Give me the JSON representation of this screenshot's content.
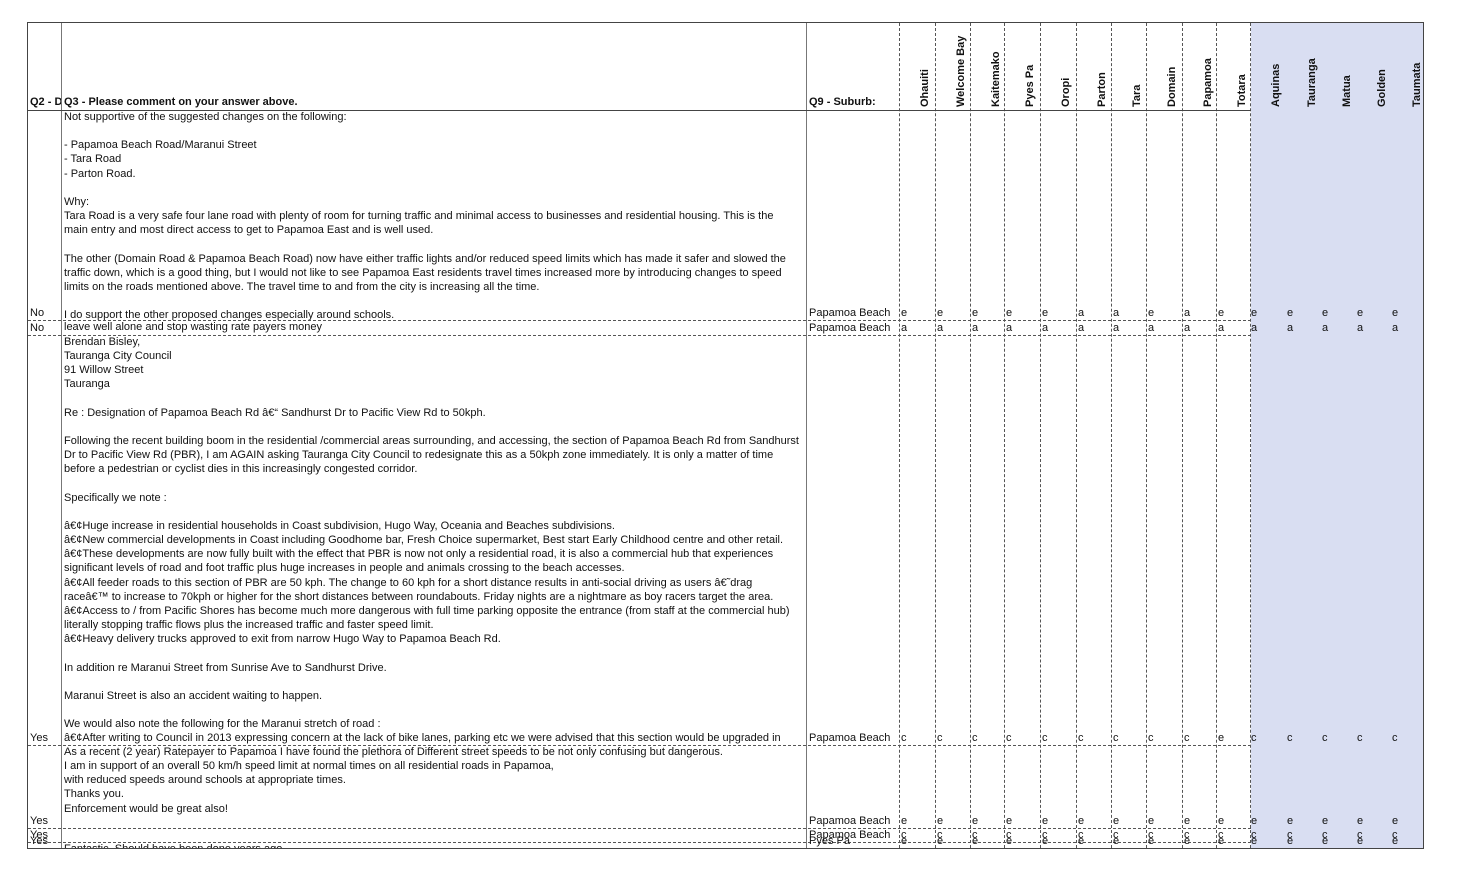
{
  "headers": {
    "q2": "Q2 - D",
    "q3": "Q3 - Please comment on your answer above.",
    "q9": "Q9 - Suburb:",
    "areas": [
      "Ohauiti",
      "Welcome Bay",
      "Kaitemako",
      "Pyes Pa",
      "Oropi",
      "Parton",
      "Tara",
      "Domain",
      "Papamoa",
      "Totara",
      "Aquinas",
      "Tauranga",
      "Matua",
      "Golden",
      "Taumata"
    ]
  },
  "shaded_color": "#d9def2",
  "rows": [
    {
      "q2": "No",
      "q3": [
        "Not supportive of the suggested changes on the following:",
        "",
        "- Papamoa Beach Road/Maranui Street",
        "- Tara Road",
        "- Parton Road.",
        "",
        "Why:",
        "Tara Road is a very safe four lane road with plenty of room for turning traffic and minimal access to businesses and residential housing. This is the",
        "main entry and most direct access to get to Papamoa East and is well used.",
        "",
        "The other (Domain Road & Papamoa Beach Road) now have either traffic lights and/or reduced speed limits which has made it safer and slowed the",
        "traffic down, which is a good thing, but I would not like to see Papamoa East residents travel times increased more by introducing changes to speed",
        "limits on the roads mentioned above. The travel time to and from the city is increasing all the time.",
        "",
        "I do support the other proposed changes especially around schools."
      ],
      "q9": "Papamoa Beach",
      "codes": [
        "e",
        "e",
        "e",
        "e",
        "e",
        "a",
        "a",
        "e",
        "a",
        "e",
        "e",
        "e",
        "e",
        "e",
        "e"
      ]
    },
    {
      "q2": "No",
      "q3": [
        "leave well alone and stop wasting rate payers money"
      ],
      "q9": "Papamoa Beach",
      "codes": [
        "a",
        "a",
        "a",
        "a",
        "a",
        "a",
        "a",
        "a",
        "a",
        "a",
        "a",
        "a",
        "a",
        "a",
        "a"
      ]
    },
    {
      "q2": "Yes",
      "q3": [
        "Brendan Bisley,",
        "Tauranga City Council",
        "91 Willow Street",
        "Tauranga",
        "",
        "Re : Designation of Papamoa Beach Rd â€“ Sandhurst Dr to Pacific View Rd to 50kph.",
        "",
        "Following  the recent building boom in the residential /commercial areas surrounding, and accessing, the section of Papamoa Beach Rd from Sandhurst",
        "Dr to Pacific View Rd (PBR), I am AGAIN asking Tauranga City Council to redesignate this as a 50kph zone immediately. It is only a matter of time",
        "before a pedestrian or cyclist dies in this increasingly congested corridor.",
        "",
        "Specifically we note :",
        "",
        "â€¢Huge increase in residential households in Coast subdivision, Hugo Way, Oceania and Beaches subdivisions.",
        "â€¢New commercial developments in Coast including Goodhome bar, Fresh Choice supermarket, Best start Early Childhood centre and other retail.",
        "â€¢These developments are now fully built with the effect that PBR is now not only a residential road, it is also a commercial hub that experiences",
        "significant levels of road and foot traffic plus huge increases in people and animals crossing to the beach accesses.",
        "â€¢All feeder roads to this section of PBR are 50 kph. The change to 60 kph for a short distance results in anti-social driving as users â€˜drag",
        "raceâ€™ to increase to 70kph or higher for the short distances between roundabouts. Friday nights are a nightmare as boy racers target the area.",
        "â€¢Access to / from Pacific Shores has become much more dangerous with full time parking opposite the entrance (from staff at the commercial hub)",
        "literally stopping traffic flows plus the increased traffic and faster speed limit.",
        "â€¢Heavy delivery trucks approved to exit  from narrow Hugo Way to Papamoa Beach Rd.",
        "",
        "In addition re Maranui Street from Sunrise Ave to Sandhurst Drive.",
        "",
        "Maranui Street is also an accident waiting to happen.",
        "",
        "We would also note the following for the Maranui stretch of road :",
        "â€¢After writing to Council in 2013 expressing concern at the lack of bike lanes, parking  etc we were advised that this section would be upgraded in"
      ],
      "q9": "Papamoa Beach",
      "codes": [
        "c",
        "c",
        "c",
        "c",
        "c",
        "c",
        "c",
        "c",
        "c",
        "e",
        "c",
        "c",
        "c",
        "c",
        "c"
      ]
    },
    {
      "q2": "Yes",
      "q3": [
        "As a recent (2 year) Ratepayer to Papamoa I have found the plethora of Different street speeds to be not only confusing but dangerous.",
        " I am in support of an overall 50 km/h speed limit at normal times on all residential roads in Papamoa,",
        " with reduced speeds around schools at appropriate times.",
        " Thanks you.",
        "Enforcement would be great also!"
      ],
      "q9": "Papamoa Beach",
      "codes": [
        "e",
        "e",
        "e",
        "e",
        "e",
        "e",
        "e",
        "e",
        "e",
        "e",
        "e",
        "e",
        "e",
        "e",
        "e"
      ]
    },
    {
      "q2": "Yes",
      "q3": [
        ""
      ],
      "q9": "Papamoa Beach",
      "codes": [
        "c",
        "c",
        "c",
        "c",
        "c",
        "c",
        "c",
        "c",
        "c",
        "c",
        "c",
        "c",
        "c",
        "c",
        "c"
      ]
    },
    {
      "q2": "Yes",
      "q3": [
        "Fantastic. Should have been done years ago"
      ],
      "q9": "Pyes Pa",
      "codes": [
        "e",
        "e",
        "e",
        "e",
        "e",
        "e",
        "e",
        "e",
        "e",
        "e",
        "e",
        "e",
        "e",
        "e",
        "e"
      ]
    }
  ]
}
